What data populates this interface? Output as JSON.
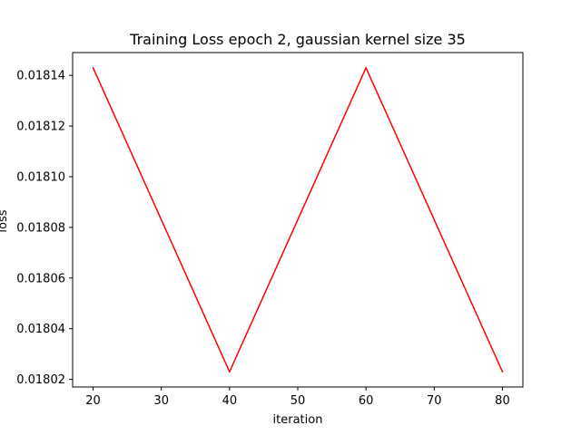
{
  "chart_data": {
    "type": "line",
    "title": "Training Loss epoch 2, gaussian kernel size 35",
    "xlabel": "iteration",
    "ylabel": "loss",
    "x": [
      20,
      40,
      60,
      80
    ],
    "series": [
      {
        "values": [
          0.018143,
          0.018023,
          0.018143,
          0.018023
        ],
        "color": "#ff0000"
      }
    ],
    "xlim": [
      17,
      83
    ],
    "ylim": [
      0.018017,
      0.018149
    ],
    "xticks": [
      20,
      30,
      40,
      50,
      60,
      70,
      80
    ],
    "yticks": [
      0.01802,
      0.01804,
      0.01806,
      0.01808,
      0.0181,
      0.01812,
      0.01814
    ],
    "xtick_labels": [
      "20",
      "30",
      "40",
      "50",
      "60",
      "70",
      "80"
    ],
    "ytick_labels": [
      "0.01802",
      "0.01804",
      "0.01806",
      "0.01808",
      "0.01810",
      "0.01812",
      "0.01814"
    ],
    "grid": false,
    "legend": "none"
  }
}
